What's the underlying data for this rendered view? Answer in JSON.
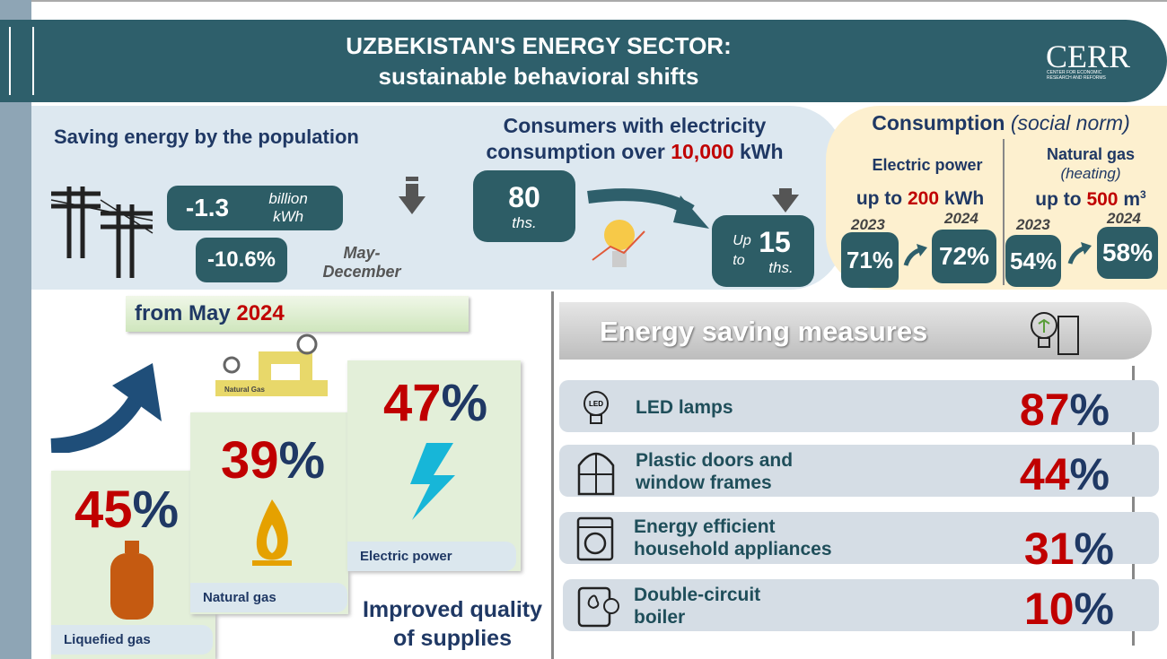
{
  "header": {
    "title": "UZBEKISTAN'S ENERGY SECTOR:",
    "subtitle": "sustainable behavioral shifts",
    "logo": "CERR",
    "logo_sub": "CENTER FOR ECONOMIC RESEARCH AND REFORMS"
  },
  "saving": {
    "title": "Saving energy by the population",
    "amount": "-1.3",
    "amount_unit": "billion kWh",
    "percent": "-10.6%",
    "period": "May-December"
  },
  "consumers": {
    "title_line1": "Consumers with electricity",
    "title_line2": "consumption over ",
    "threshold": "10,000",
    "threshold_unit": " kWh",
    "before_value": "80",
    "before_unit": "ths.",
    "after_prefix": "Up to",
    "after_value": "15",
    "after_unit": "ths."
  },
  "consumption": {
    "title": "Consumption",
    "title_note": "(social norm)",
    "electric": {
      "label": "Electric power",
      "norm_prefix": "up to ",
      "norm_value": "200",
      "norm_unit": " kWh",
      "year_1": "2023",
      "share_1": "71%",
      "year_2": "2024",
      "share_2": "72%"
    },
    "gas": {
      "label": "Natural gas",
      "note": "(heating)",
      "norm_prefix": "up to ",
      "norm_value": "500",
      "norm_unit": " m",
      "norm_unit_sup": "3",
      "year_1": "2023",
      "share_1": "54%",
      "year_2": "2024",
      "share_2": "58%"
    }
  },
  "quality": {
    "banner_prefix": "from May ",
    "banner_year": "2024",
    "pipe_label": "Natural Gas",
    "items": [
      {
        "value": "45",
        "unit": "%",
        "label": "Liquefied gas"
      },
      {
        "value": "39",
        "unit": "%",
        "label": "Natural gas"
      },
      {
        "value": "47",
        "unit": "%",
        "label": "Electric power"
      }
    ],
    "caption": "Improved quality of supplies"
  },
  "measures": {
    "title": "Energy saving measures",
    "led_icon": "LED",
    "items": [
      {
        "label": "LED lamps",
        "value": "87",
        "unit": "%"
      },
      {
        "label": "Plastic doors and window frames",
        "value": "44",
        "unit": "%"
      },
      {
        "label": "Energy efficient household appliances",
        "value": "31",
        "unit": "%"
      },
      {
        "label": "Double-circuit boiler",
        "value": "10",
        "unit": "%"
      }
    ]
  }
}
